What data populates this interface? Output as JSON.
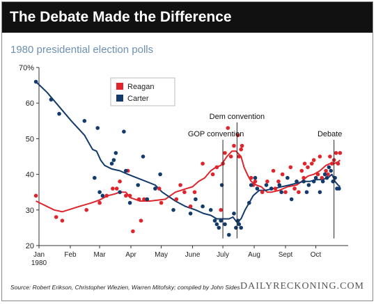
{
  "header": {
    "title": "The Debate Made the Difference",
    "subtitle": "1980 presidential election polls"
  },
  "footer": {
    "source": "Source: Robert Erikson, Christopher Wlezien, Warren Mitofsky; compiled by John Sides",
    "brand": "DAILYRECKONING.COM"
  },
  "colors": {
    "reagan": "#e0242b",
    "carter": "#123a6b",
    "axis": "#333333"
  },
  "chart_data": {
    "type": "scatter",
    "title": "1980 presidential election polls",
    "xlabel": "",
    "ylabel": "",
    "ylim": [
      20,
      70
    ],
    "xlim": [
      0,
      306
    ],
    "yticks": [
      20,
      30,
      40,
      50,
      60,
      70
    ],
    "ytick_labels": [
      "20",
      "30",
      "40",
      "50",
      "60",
      "70%"
    ],
    "xticks": [
      {
        "x": 0,
        "label": "Jan"
      },
      {
        "x": 31,
        "label": "Feb"
      },
      {
        "x": 60,
        "label": "Mar"
      },
      {
        "x": 91,
        "label": "Apr"
      },
      {
        "x": 121,
        "label": "May"
      },
      {
        "x": 152,
        "label": "June"
      },
      {
        "x": 182,
        "label": "July"
      },
      {
        "x": 213,
        "label": "Aug"
      },
      {
        "x": 244,
        "label": "Sept"
      },
      {
        "x": 274,
        "label": "Oct"
      }
    ],
    "year_label": "1980",
    "legend": {
      "position": "top-left",
      "entries": [
        "Reagan",
        "Carter"
      ]
    },
    "annotations": [
      {
        "x": 196,
        "label": "Dem convention",
        "position": "upper"
      },
      {
        "x": 182,
        "label": "GOP convention",
        "position": "lower"
      },
      {
        "x": 292,
        "label": "Debate",
        "position": "right"
      }
    ],
    "series": [
      {
        "name": "Reagan",
        "points": [
          [
            -3,
            34
          ],
          [
            17,
            28
          ],
          [
            23,
            27
          ],
          [
            47,
            30
          ],
          [
            60,
            32
          ],
          [
            67,
            34
          ],
          [
            73,
            36
          ],
          [
            77,
            36
          ],
          [
            80,
            38
          ],
          [
            86,
            34
          ],
          [
            88,
            41
          ],
          [
            90,
            34
          ],
          [
            93,
            24
          ],
          [
            99,
            33
          ],
          [
            101,
            27
          ],
          [
            104,
            33
          ],
          [
            119,
            36
          ],
          [
            121,
            32
          ],
          [
            136,
            33
          ],
          [
            140,
            37
          ],
          [
            144,
            35
          ],
          [
            150,
            31
          ],
          [
            154,
            35
          ],
          [
            162,
            43
          ],
          [
            172,
            40
          ],
          [
            176,
            42
          ],
          [
            180,
            30
          ],
          [
            182,
            43
          ],
          [
            184,
            46
          ],
          [
            187,
            53
          ],
          [
            190,
            45
          ],
          [
            193,
            48
          ],
          [
            197,
            51
          ],
          [
            198,
            45
          ],
          [
            200,
            47
          ],
          [
            201,
            48
          ],
          [
            210,
            39
          ],
          [
            212,
            37
          ],
          [
            214,
            38
          ],
          [
            221,
            35
          ],
          [
            226,
            38
          ],
          [
            232,
            41
          ],
          [
            234,
            36
          ],
          [
            237,
            38
          ],
          [
            241,
            40
          ],
          [
            244,
            35
          ],
          [
            249,
            42
          ],
          [
            253,
            36
          ],
          [
            257,
            35
          ],
          [
            260,
            41
          ],
          [
            262,
            39
          ],
          [
            263,
            43
          ],
          [
            266,
            42
          ],
          [
            270,
            43
          ],
          [
            272,
            44
          ],
          [
            276,
            40
          ],
          [
            278,
            45
          ],
          [
            280,
            39
          ],
          [
            284,
            41
          ],
          [
            286,
            40
          ],
          [
            288,
            45
          ],
          [
            290,
            43
          ],
          [
            292,
            44
          ],
          [
            294,
            46
          ],
          [
            296,
            43
          ],
          [
            298,
            46
          ]
        ]
      },
      {
        "name": "Carter",
        "points": [
          [
            -3,
            66
          ],
          [
            12,
            61
          ],
          [
            20,
            57
          ],
          [
            45,
            55
          ],
          [
            55,
            39
          ],
          [
            58,
            53
          ],
          [
            60,
            35
          ],
          [
            63,
            34
          ],
          [
            72,
            43
          ],
          [
            74,
            44
          ],
          [
            76,
            46
          ],
          [
            80,
            35
          ],
          [
            84,
            52
          ],
          [
            86,
            41
          ],
          [
            90,
            32
          ],
          [
            98,
            37
          ],
          [
            103,
            45
          ],
          [
            107,
            33
          ],
          [
            115,
            36
          ],
          [
            120,
            40
          ],
          [
            133,
            30
          ],
          [
            150,
            29
          ],
          [
            155,
            33
          ],
          [
            162,
            31
          ],
          [
            170,
            30
          ],
          [
            174,
            27
          ],
          [
            176,
            26
          ],
          [
            178,
            25
          ],
          [
            180,
            27
          ],
          [
            181,
            37
          ],
          [
            184,
            26
          ],
          [
            188,
            23
          ],
          [
            193,
            29
          ],
          [
            195,
            25
          ],
          [
            197,
            27
          ],
          [
            198,
            26
          ],
          [
            200,
            25
          ],
          [
            208,
            32
          ],
          [
            210,
            37
          ],
          [
            214,
            39
          ],
          [
            216,
            36
          ],
          [
            225,
            37
          ],
          [
            230,
            36
          ],
          [
            238,
            37
          ],
          [
            240,
            35
          ],
          [
            246,
            39
          ],
          [
            250,
            33
          ],
          [
            255,
            38
          ],
          [
            262,
            38
          ],
          [
            265,
            35
          ],
          [
            267,
            37
          ],
          [
            272,
            38
          ],
          [
            274,
            39
          ],
          [
            278,
            35
          ],
          [
            281,
            38
          ],
          [
            283,
            40
          ],
          [
            285,
            39
          ],
          [
            287,
            42
          ],
          [
            289,
            41
          ],
          [
            291,
            38
          ],
          [
            293,
            39
          ],
          [
            295,
            36
          ],
          [
            297,
            36
          ]
        ]
      }
    ],
    "trend_lines": [
      {
        "name": "Reagan",
        "points": [
          [
            -3,
            32.5
          ],
          [
            15,
            30
          ],
          [
            23,
            29.5
          ],
          [
            40,
            31
          ],
          [
            52,
            32
          ],
          [
            60,
            32.8
          ],
          [
            68,
            34
          ],
          [
            75,
            34.5
          ],
          [
            80,
            35
          ],
          [
            86,
            35
          ],
          [
            90,
            33.5
          ],
          [
            95,
            33
          ],
          [
            100,
            32.5
          ],
          [
            110,
            32.5
          ],
          [
            125,
            33
          ],
          [
            135,
            35
          ],
          [
            146,
            36
          ],
          [
            152,
            36.5
          ],
          [
            158,
            38
          ],
          [
            164,
            39
          ],
          [
            170,
            41
          ],
          [
            175,
            42
          ],
          [
            180,
            42.5
          ],
          [
            186,
            45
          ],
          [
            191,
            46.5
          ],
          [
            195,
            46.5
          ],
          [
            200,
            45
          ],
          [
            203,
            42
          ],
          [
            207,
            39.5
          ],
          [
            210,
            38
          ],
          [
            215,
            37
          ],
          [
            220,
            36.5
          ],
          [
            226,
            35
          ],
          [
            230,
            35
          ],
          [
            238,
            35.5
          ],
          [
            246,
            36.5
          ],
          [
            255,
            37
          ],
          [
            260,
            38
          ],
          [
            266,
            39.5
          ],
          [
            272,
            40
          ],
          [
            278,
            41
          ],
          [
            284,
            42.5
          ],
          [
            288,
            43
          ],
          [
            292,
            43
          ],
          [
            296,
            43.5
          ],
          [
            298,
            44
          ]
        ]
      },
      {
        "name": "Carter",
        "points": [
          [
            -3,
            66
          ],
          [
            8,
            63
          ],
          [
            20,
            59
          ],
          [
            32,
            55
          ],
          [
            45,
            51
          ],
          [
            53,
            47
          ],
          [
            57,
            46.5
          ],
          [
            61,
            44
          ],
          [
            65,
            42.5
          ],
          [
            72,
            41.5
          ],
          [
            80,
            41
          ],
          [
            88,
            40
          ],
          [
            97,
            39
          ],
          [
            106,
            38
          ],
          [
            115,
            37
          ],
          [
            122,
            35
          ],
          [
            135,
            32.5
          ],
          [
            145,
            31
          ],
          [
            155,
            30
          ],
          [
            163,
            29
          ],
          [
            170,
            28.5
          ],
          [
            176,
            27.5
          ],
          [
            184,
            27.5
          ],
          [
            188,
            27.5
          ],
          [
            192,
            28
          ],
          [
            196,
            26.5
          ],
          [
            200,
            27.5
          ],
          [
            204,
            30
          ],
          [
            208,
            32
          ],
          [
            212,
            34
          ],
          [
            218,
            35.5
          ],
          [
            224,
            35.5
          ],
          [
            232,
            36
          ],
          [
            240,
            36.5
          ],
          [
            248,
            37
          ],
          [
            255,
            37.5
          ],
          [
            262,
            38
          ],
          [
            268,
            38
          ],
          [
            274,
            38.5
          ],
          [
            280,
            38.5
          ],
          [
            286,
            39
          ],
          [
            290,
            40
          ],
          [
            293,
            38
          ],
          [
            296,
            37
          ],
          [
            298,
            36.5
          ]
        ]
      }
    ]
  }
}
